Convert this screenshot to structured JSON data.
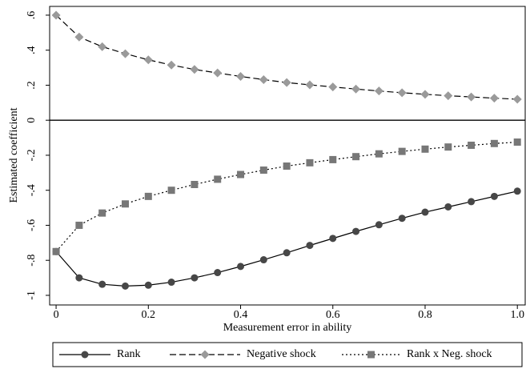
{
  "chart_data": {
    "type": "line",
    "xlabel": "Measurement error in ability",
    "ylabel": "Estimated coefficient",
    "x": [
      0,
      0.05,
      0.1,
      0.15,
      0.2,
      0.25,
      0.3,
      0.35,
      0.4,
      0.45,
      0.5,
      0.55,
      0.6,
      0.65,
      0.7,
      0.75,
      0.8,
      0.85,
      0.9,
      0.95,
      1.0
    ],
    "series": [
      {
        "name": "Rank",
        "color": "#474747",
        "dash": "solid",
        "marker": "circle",
        "values": [
          -0.75,
          -0.9,
          -0.937,
          -0.947,
          -0.942,
          -0.925,
          -0.9,
          -0.87,
          -0.835,
          -0.797,
          -0.757,
          -0.715,
          -0.675,
          -0.635,
          -0.597,
          -0.56,
          -0.525,
          -0.495,
          -0.465,
          -0.435,
          -0.405
        ]
      },
      {
        "name": "Negative shock",
        "color": "#9a9a9a",
        "dash": "dashed",
        "marker": "diamond",
        "values": [
          0.6,
          0.475,
          0.42,
          0.38,
          0.345,
          0.315,
          0.29,
          0.27,
          0.25,
          0.232,
          0.215,
          0.202,
          0.19,
          0.178,
          0.167,
          0.157,
          0.148,
          0.14,
          0.133,
          0.126,
          0.12
        ]
      },
      {
        "name": "Rank x Neg. shock",
        "color": "#777777",
        "dash": "dotted",
        "marker": "square",
        "values": [
          -0.75,
          -0.6,
          -0.53,
          -0.478,
          -0.435,
          -0.4,
          -0.367,
          -0.337,
          -0.31,
          -0.285,
          -0.262,
          -0.243,
          -0.225,
          -0.208,
          -0.192,
          -0.178,
          -0.165,
          -0.153,
          -0.143,
          -0.133,
          -0.125
        ]
      }
    ],
    "xlim": [
      -0.014,
      1.017
    ],
    "ylim": [
      -1.055,
      0.65
    ],
    "xticks": [
      0,
      0.2,
      0.4,
      0.6,
      0.8,
      {
        "value": 1.0,
        "label": "1.0"
      }
    ],
    "yticks": [
      {
        "value": 0.6,
        "label": ".6"
      },
      {
        "value": 0.4,
        "label": ".4"
      },
      {
        "value": 0.2,
        "label": ".2"
      },
      0,
      {
        "value": -0.2,
        "label": "-.2"
      },
      {
        "value": -0.4,
        "label": "-.4"
      },
      {
        "value": -0.6,
        "label": "-.6"
      },
      {
        "value": -0.8,
        "label": "-.8"
      },
      {
        "value": -1,
        "label": "-1"
      }
    ],
    "zero_line": true,
    "legend": "bottom"
  }
}
